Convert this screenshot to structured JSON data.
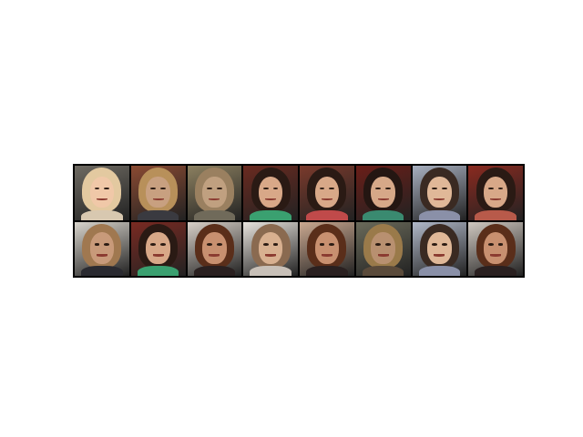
{
  "grid": {
    "rows": 2,
    "cols": 8,
    "tiles": [
      {
        "subject": "blonde-woman-smiling",
        "bg": "#6e6a62",
        "hair": "#e3c9a0",
        "face": "#f0c8a8",
        "shirt": "#d8c8b0"
      },
      {
        "subject": "man-spiky-hair",
        "bg": "#8a4a32",
        "hair": "#b8905a",
        "face": "#c8a080",
        "shirt": "#3a3a40"
      },
      {
        "subject": "blurry-man-outdoor",
        "bg": "#8c8060",
        "hair": "#9a8060",
        "face": "#c0a080",
        "shirt": "#706a5a"
      },
      {
        "subject": "dark-hair-woman-colorful",
        "bg": "#6a2a20",
        "hair": "#2a1a14",
        "face": "#d8a888",
        "shirt": "#3aa070"
      },
      {
        "subject": "dark-hair-woman",
        "bg": "#7a3a2c",
        "hair": "#2a1a14",
        "face": "#d8a888",
        "shirt": "#c04a4a"
      },
      {
        "subject": "dark-hair-woman-red",
        "bg": "#6a1e18",
        "hair": "#241612",
        "face": "#d6a888",
        "shirt": "#3a8a70"
      },
      {
        "subject": "woman-headpiece",
        "bg": "#a8b0c0",
        "hair": "#3a2a22",
        "face": "#e0b898",
        "shirt": "#8a90a8"
      },
      {
        "subject": "dark-hair-woman-red-bg",
        "bg": "#8a2a20",
        "hair": "#2a1a14",
        "face": "#d8a888",
        "shirt": "#b85a4a"
      },
      {
        "subject": "man-spiky-hair-2",
        "bg": "#d8d4cc",
        "hair": "#a07850",
        "face": "#c89a7a",
        "shirt": "#2a2a30"
      },
      {
        "subject": "dark-hair-woman-colorful-2",
        "bg": "#7a2a22",
        "hair": "#2a1a14",
        "face": "#d8a888",
        "shirt": "#3aa070"
      },
      {
        "subject": "brown-hair-woman",
        "bg": "#d8d0c8",
        "hair": "#5a2e1a",
        "face": "#c89070",
        "shirt": "#2a2020"
      },
      {
        "subject": "short-hair-person",
        "bg": "#e8e4de",
        "hair": "#8a6a50",
        "face": "#d8b090",
        "shirt": "#c8c0b8"
      },
      {
        "subject": "brown-hair-woman-2",
        "bg": "#caa890",
        "hair": "#5a2e1a",
        "face": "#c89070",
        "shirt": "#2a2020"
      },
      {
        "subject": "blurry-woman-blonde",
        "bg": "#6a6a5a",
        "hair": "#9a7a4a",
        "face": "#b89070",
        "shirt": "#5a4a3a"
      },
      {
        "subject": "woman-headpiece-2",
        "bg": "#b0b8c8",
        "hair": "#3a2a22",
        "face": "#e0b898",
        "shirt": "#8a90a8"
      },
      {
        "subject": "brown-hair-woman-3",
        "bg": "#d0c8c0",
        "hair": "#5a2e1a",
        "face": "#c89070",
        "shirt": "#2a2020"
      }
    ]
  }
}
